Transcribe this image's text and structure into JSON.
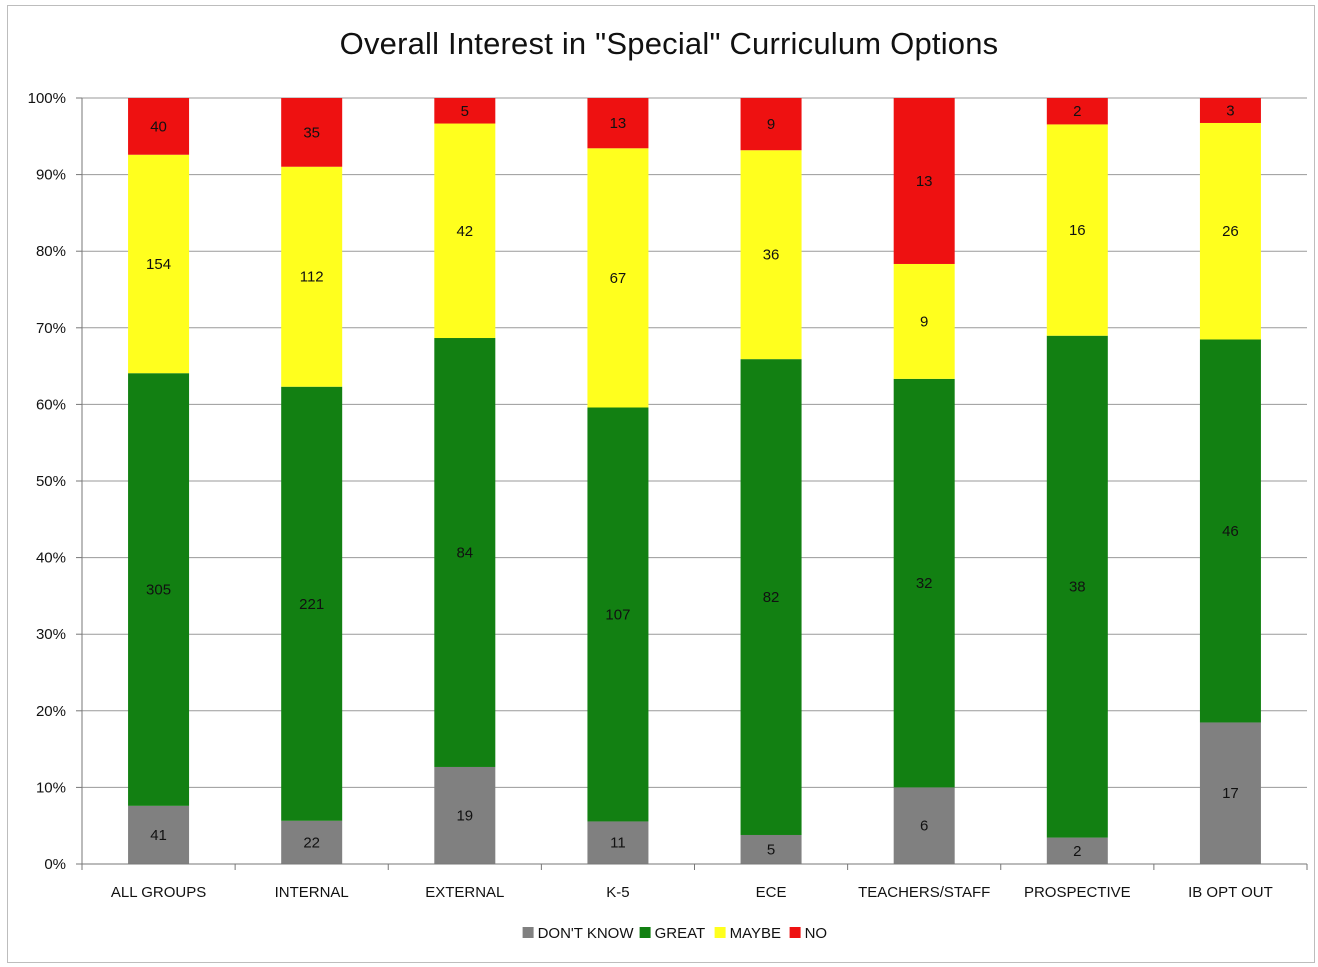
{
  "chart_data": {
    "type": "bar",
    "stacked": true,
    "normalized": true,
    "title": "Overall Interest in \"Special\" Curriculum Options",
    "xlabel": "",
    "ylabel": "",
    "ylim": [
      0,
      100
    ],
    "y_ticks": [
      "0%",
      "10%",
      "20%",
      "30%",
      "40%",
      "50%",
      "60%",
      "70%",
      "80%",
      "90%",
      "100%"
    ],
    "grid": true,
    "legend": "bottom",
    "categories": [
      "ALL GROUPS",
      "INTERNAL",
      "EXTERNAL",
      "K-5",
      "ECE",
      "TEACHERS/STAFF",
      "PROSPECTIVE",
      "IB OPT OUT"
    ],
    "series": [
      {
        "name": "DON'T KNOW",
        "color": "#808080",
        "values": [
          41,
          22,
          19,
          11,
          5,
          6,
          2,
          17
        ]
      },
      {
        "name": "GREAT",
        "color": "#128012",
        "values": [
          305,
          221,
          84,
          107,
          82,
          32,
          38,
          46
        ]
      },
      {
        "name": "MAYBE",
        "color": "#ffff1e",
        "values": [
          154,
          112,
          42,
          67,
          36,
          9,
          16,
          26
        ]
      },
      {
        "name": "NO",
        "color": "#ee1111",
        "values": [
          40,
          35,
          5,
          13,
          9,
          13,
          2,
          3
        ]
      }
    ]
  }
}
